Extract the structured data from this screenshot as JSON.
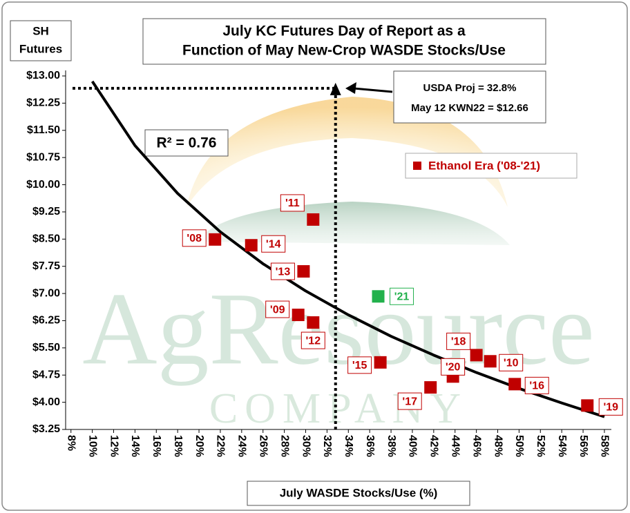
{
  "chart_data": {
    "type": "scatter",
    "title": [
      "July KC Futures Day of Report as a",
      "Function of May New-Crop WASDE Stocks/Use"
    ],
    "y_label": [
      "SH",
      "Futures"
    ],
    "x_label": "July WASDE Stocks/Use (%)",
    "watermark": [
      "AgResource",
      "COMPANY"
    ],
    "r_squared_label": "R² = 0.76",
    "annotation": [
      "USDA Proj  =  32.8%",
      "May 12 KWN22 = $12.66"
    ],
    "usda_proj": {
      "x": 32.8,
      "y": 12.66
    },
    "xlim": [
      7.5,
      58.65
    ],
    "ylim": [
      3.25,
      13
    ],
    "xticks": [
      {
        "value": 8,
        "label": "8%"
      },
      {
        "value": 10,
        "label": "10%"
      },
      {
        "value": 12,
        "label": "12%"
      },
      {
        "value": 14,
        "label": "14%"
      },
      {
        "value": 16,
        "label": "16%"
      },
      {
        "value": 18,
        "label": "18%"
      },
      {
        "value": 20,
        "label": "20%"
      },
      {
        "value": 22,
        "label": "22%"
      },
      {
        "value": 24,
        "label": "24%"
      },
      {
        "value": 26,
        "label": "26%"
      },
      {
        "value": 28,
        "label": "28%"
      },
      {
        "value": 30,
        "label": "30%"
      },
      {
        "value": 32,
        "label": "32%"
      },
      {
        "value": 34,
        "label": "34%"
      },
      {
        "value": 36,
        "label": "36%"
      },
      {
        "value": 38,
        "label": "38%"
      },
      {
        "value": 40,
        "label": "40%"
      },
      {
        "value": 42,
        "label": "42%"
      },
      {
        "value": 44,
        "label": "44%"
      },
      {
        "value": 46,
        "label": "46%"
      },
      {
        "value": 48,
        "label": "48%"
      },
      {
        "value": 50,
        "label": "50%"
      },
      {
        "value": 52,
        "label": "52%"
      },
      {
        "value": 54,
        "label": "54%"
      },
      {
        "value": 56,
        "label": "56%"
      },
      {
        "value": 58,
        "label": "58%"
      }
    ],
    "yticks": [
      {
        "value": 3.25,
        "label": "$3.25"
      },
      {
        "value": 4,
        "label": "$4.00"
      },
      {
        "value": 4.75,
        "label": "$4.75"
      },
      {
        "value": 5.5,
        "label": "$5.50"
      },
      {
        "value": 6.25,
        "label": "$6.25"
      },
      {
        "value": 7,
        "label": "$7.00"
      },
      {
        "value": 7.75,
        "label": "$7.75"
      },
      {
        "value": 8.5,
        "label": "$8.50"
      },
      {
        "value": 9.25,
        "label": "$9.25"
      },
      {
        "value": 10,
        "label": "$10.00"
      },
      {
        "value": 10.75,
        "label": "$10.75"
      },
      {
        "value": 11.5,
        "label": "$11.50"
      },
      {
        "value": 12.25,
        "label": "$12.25"
      },
      {
        "value": 13,
        "label": "$13.00"
      }
    ],
    "series": [
      {
        "name": "Ethanol Era ('08-'21)",
        "color": "#c00000",
        "x": [
          21.5,
          24.9,
          30.7,
          29.8,
          29.3,
          30.7,
          36.8,
          37.0,
          43.8,
          41.7,
          46.0,
          47.3,
          49.6,
          56.4
        ],
        "values": [
          8.49,
          8.33,
          9.04,
          7.61,
          6.41,
          6.2,
          6.92,
          5.1,
          4.71,
          4.41,
          5.3,
          5.13,
          4.5,
          3.91
        ],
        "labels": [
          "'08",
          "'14",
          "'11",
          "'13",
          "'09",
          "'12",
          "'21",
          "'15",
          "'20",
          "'17",
          "'18",
          "'10",
          "'16",
          "'19"
        ],
        "colors": [
          "#c00000",
          "#c00000",
          "#c00000",
          "#c00000",
          "#c00000",
          "#c00000",
          "#22b14c",
          "#c00000",
          "#c00000",
          "#c00000",
          "#c00000",
          "#c00000",
          "#c00000",
          "#c00000"
        ]
      }
    ],
    "trendline": {
      "color": "#000000",
      "x": [
        10,
        14,
        18,
        22,
        26,
        30,
        34,
        38,
        42,
        46,
        50,
        54,
        58
      ],
      "values": [
        12.85,
        11.08,
        9.76,
        8.7,
        7.82,
        7.07,
        6.41,
        5.82,
        5.3,
        4.82,
        4.38,
        3.98,
        3.6
      ]
    }
  }
}
